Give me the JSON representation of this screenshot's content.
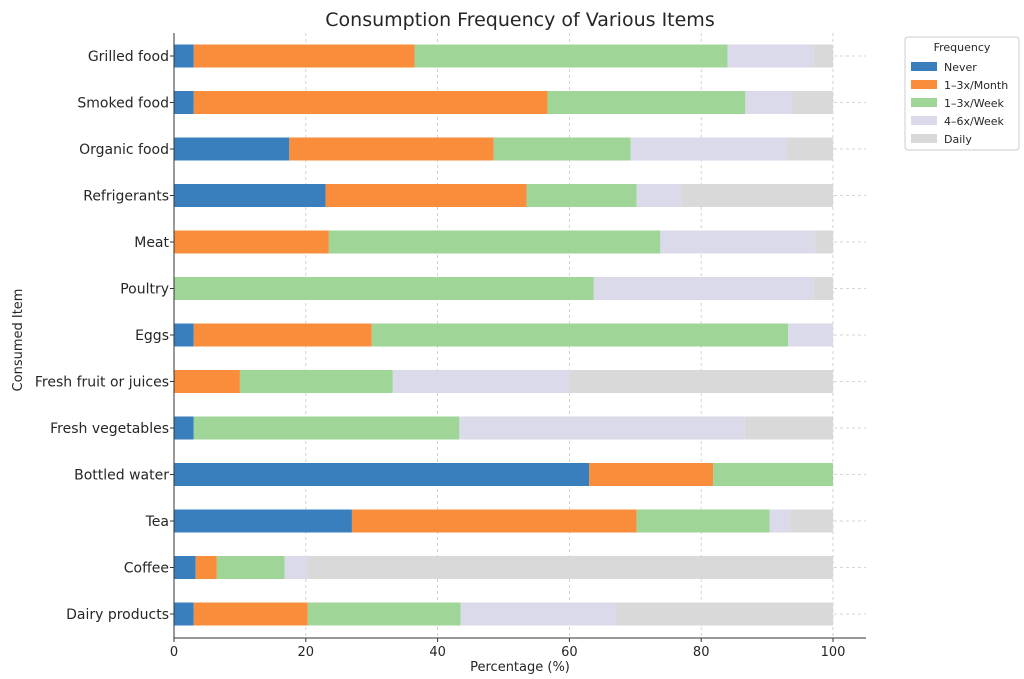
{
  "chart_data": {
    "type": "bar",
    "orientation": "horizontal",
    "stacked": true,
    "title": "Consumption Frequency of Various Items",
    "xlabel": "Percentage (%)",
    "ylabel": "Consumed Item",
    "xlim": [
      0,
      100
    ],
    "xticks": [
      "0",
      "20",
      "40",
      "60",
      "80",
      "100"
    ],
    "grid": true,
    "legend": {
      "title": "Frequency",
      "placement": "outside-top-right"
    },
    "categories": [
      "Grilled food",
      "Smoked food",
      "Organic food",
      "Refrigerants",
      "Meat",
      "Poultry",
      "Eggs",
      "Fresh fruit or juices",
      "Fresh vegetables",
      "Bottled water",
      "Tea",
      "Coffee",
      "Dairy products"
    ],
    "series": [
      {
        "name": "Never",
        "color": "#3a7fbd",
        "values": [
          3,
          3,
          17.5,
          23,
          0,
          0,
          3,
          0,
          3,
          63,
          27,
          3.3,
          3
        ]
      },
      {
        "name": "1–3x/Month",
        "color": "#f98d3b",
        "values": [
          33.5,
          53.7,
          31,
          30.5,
          23.5,
          0,
          27,
          10,
          0,
          18.8,
          43.2,
          3.2,
          17.3
        ]
      },
      {
        "name": "1–3x/Week",
        "color": "#9fd597",
        "values": [
          47.5,
          30,
          20.8,
          16.7,
          50.3,
          63.7,
          63.2,
          23.2,
          40.3,
          18.2,
          20.2,
          10.3,
          23.2
        ]
      },
      {
        "name": "4–6x/Week",
        "color": "#dadaea",
        "values": [
          13,
          7,
          23.7,
          6.8,
          23.5,
          33.3,
          6.8,
          26.8,
          43.3,
          0,
          3.1,
          3.4,
          23.5
        ]
      },
      {
        "name": "Daily",
        "color": "#d9d9d9",
        "values": [
          3,
          6.3,
          7,
          23,
          2.7,
          3,
          0,
          40,
          13.4,
          0,
          6.5,
          79.8,
          33
        ]
      }
    ]
  }
}
